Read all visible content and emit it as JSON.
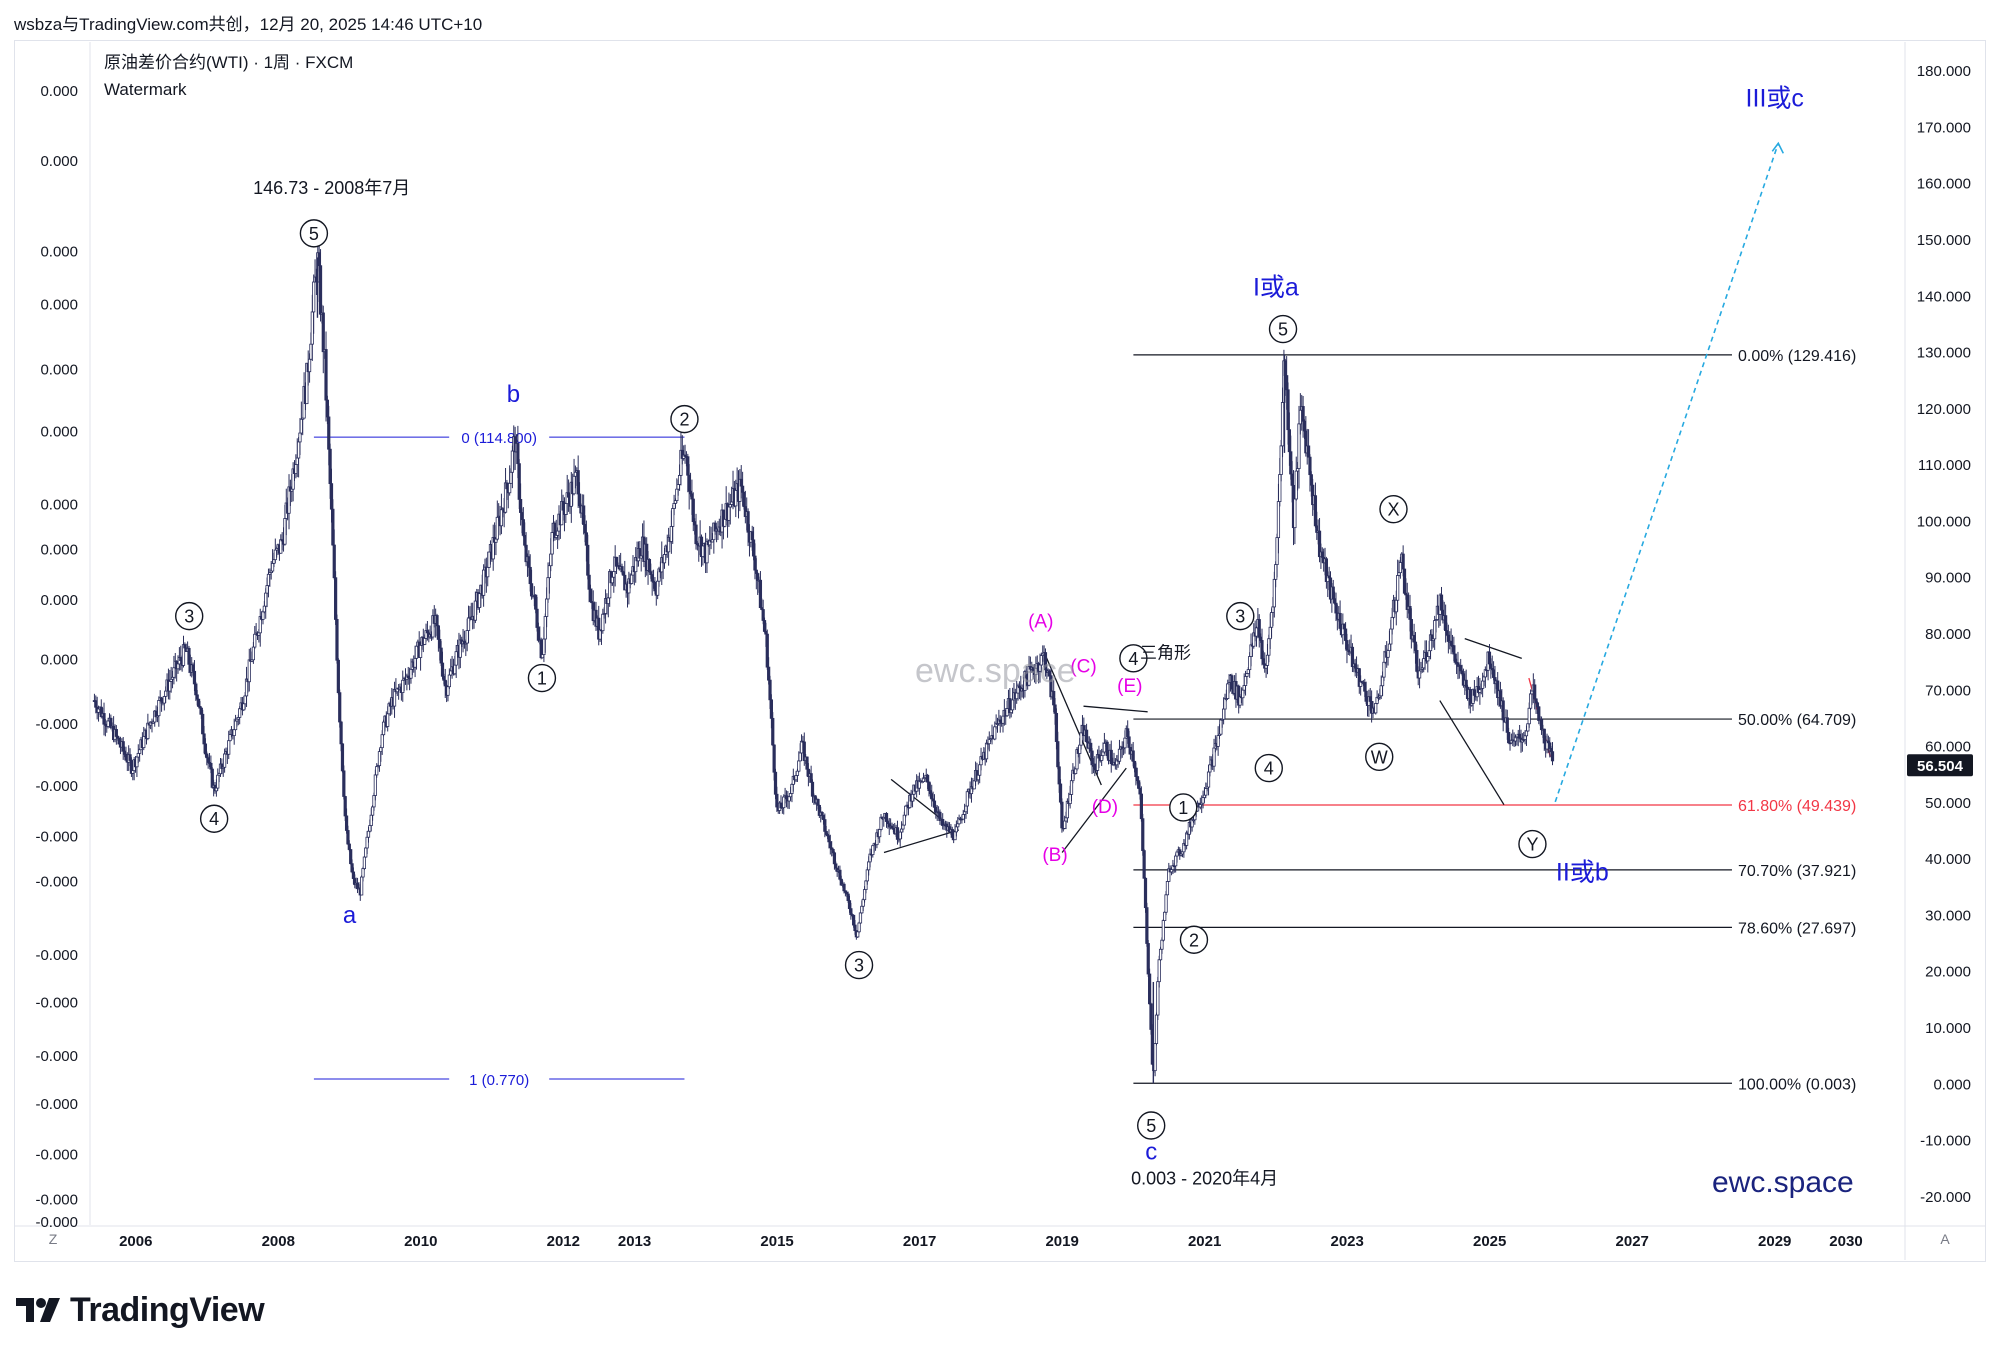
{
  "header": {
    "text": "wsbza与TradingView.com共创，12月 20, 2025 14:46 UTC+10"
  },
  "symbol": {
    "title": "原油差价合约(WTI) · 1周 · FXCM",
    "subtitle": "Watermark"
  },
  "watermark": {
    "center": "ewc.space",
    "corner": "ewc.space"
  },
  "logo": {
    "text": "TradingView"
  },
  "buttons": {
    "z": "Z",
    "a": "A"
  },
  "colors": {
    "candle": "#2a2e5c",
    "blue_label": "#1b1bd8",
    "magenta": "#e600e6",
    "red_level": "#f23645",
    "projection": "#26a9e0",
    "price_tag": "#131722"
  },
  "chart_data": {
    "type": "candlestick",
    "title": "原油差价合约(WTI) · 1周 · FXCM",
    "x_range": [
      2005.4,
      2030.8
    ],
    "y_range": [
      -25,
      185
    ],
    "x_ticks": [
      {
        "label": "2006",
        "x": 2006
      },
      {
        "label": "2008",
        "x": 2008
      },
      {
        "label": "2010",
        "x": 2010
      },
      {
        "label": "2012",
        "x": 2012
      },
      {
        "label": "2013",
        "x": 2013
      },
      {
        "label": "2015",
        "x": 2015
      },
      {
        "label": "2017",
        "x": 2017
      },
      {
        "label": "2019",
        "x": 2019
      },
      {
        "label": "2021",
        "x": 2021
      },
      {
        "label": "2023",
        "x": 2023
      },
      {
        "label": "2025",
        "x": 2025
      },
      {
        "label": "2027",
        "x": 2027
      },
      {
        "label": "2029",
        "x": 2029
      },
      {
        "label": "2030",
        "x": 2030
      }
    ],
    "right_axis_ticks": [
      {
        "label": "180.000",
        "y": 180
      },
      {
        "label": "170.000",
        "y": 170
      },
      {
        "label": "160.000",
        "y": 160
      },
      {
        "label": "150.000",
        "y": 150
      },
      {
        "label": "140.000",
        "y": 140
      },
      {
        "label": "130.000",
        "y": 130
      },
      {
        "label": "120.000",
        "y": 120
      },
      {
        "label": "110.000",
        "y": 110
      },
      {
        "label": "100.000",
        "y": 100
      },
      {
        "label": "90.000",
        "y": 90
      },
      {
        "label": "80.000",
        "y": 80
      },
      {
        "label": "70.000",
        "y": 70
      },
      {
        "label": "60.000",
        "y": 60
      },
      {
        "label": "50.000",
        "y": 50
      },
      {
        "label": "40.000",
        "y": 40
      },
      {
        "label": "30.000",
        "y": 30
      },
      {
        "label": "20.000",
        "y": 20
      },
      {
        "label": "10.000",
        "y": 10
      },
      {
        "label": "0.000",
        "y": 0
      },
      {
        "label": "-10.000",
        "y": -10
      },
      {
        "label": "-20.000",
        "y": -20
      }
    ],
    "left_axis_ticks": [
      {
        "label": "0.000",
        "y": 176.5
      },
      {
        "label": "0.000",
        "y": 164
      },
      {
        "label": "0.000",
        "y": 148
      },
      {
        "label": "0.000",
        "y": 138.5
      },
      {
        "label": "0.000",
        "y": 127
      },
      {
        "label": "0.000",
        "y": 116
      },
      {
        "label": "0.000",
        "y": 103
      },
      {
        "label": "0.000",
        "y": 95
      },
      {
        "label": "0.000",
        "y": 86
      },
      {
        "label": "0.000",
        "y": 75.5
      },
      {
        "label": "-0.000",
        "y": 64
      },
      {
        "label": "-0.000",
        "y": 53
      },
      {
        "label": "-0.000",
        "y": 44
      },
      {
        "label": "-0.000",
        "y": 36
      },
      {
        "label": "-0.000",
        "y": 23
      },
      {
        "label": "-0.000",
        "y": 14.5
      },
      {
        "label": "-0.000",
        "y": 5
      },
      {
        "label": "-0.000",
        "y": -3.5
      },
      {
        "label": "-0.000",
        "y": -12.5
      },
      {
        "label": "-0.000",
        "y": -20.5
      },
      {
        "label": "-0.000",
        "y": -24.5
      }
    ],
    "last_price": {
      "label": "56.504",
      "y": 56.504
    },
    "price_path": [
      [
        2005.42,
        68
      ],
      [
        2005.7,
        62
      ],
      [
        2005.95,
        56
      ],
      [
        2006.2,
        64
      ],
      [
        2006.5,
        72
      ],
      [
        2006.7,
        77
      ],
      [
        2006.85,
        70
      ],
      [
        2007.0,
        58
      ],
      [
        2007.1,
        52
      ],
      [
        2007.3,
        60
      ],
      [
        2007.5,
        68
      ],
      [
        2007.7,
        80
      ],
      [
        2007.9,
        92
      ],
      [
        2008.05,
        96
      ],
      [
        2008.2,
        108
      ],
      [
        2008.4,
        125
      ],
      [
        2008.5,
        140
      ],
      [
        2008.55,
        146.73
      ],
      [
        2008.65,
        128
      ],
      [
        2008.75,
        100
      ],
      [
        2008.85,
        68
      ],
      [
        2008.95,
        45
      ],
      [
        2009.05,
        36
      ],
      [
        2009.15,
        34
      ],
      [
        2009.3,
        48
      ],
      [
        2009.45,
        62
      ],
      [
        2009.6,
        68
      ],
      [
        2009.8,
        72
      ],
      [
        2010.0,
        78
      ],
      [
        2010.2,
        82
      ],
      [
        2010.35,
        70
      ],
      [
        2010.5,
        76
      ],
      [
        2010.7,
        82
      ],
      [
        2010.9,
        90
      ],
      [
        2011.1,
        100
      ],
      [
        2011.25,
        108
      ],
      [
        2011.32,
        114.8
      ],
      [
        2011.45,
        95
      ],
      [
        2011.6,
        85
      ],
      [
        2011.7,
        76
      ],
      [
        2011.85,
        98
      ],
      [
        2012.0,
        102
      ],
      [
        2012.2,
        108
      ],
      [
        2012.4,
        85
      ],
      [
        2012.5,
        80
      ],
      [
        2012.7,
        92
      ],
      [
        2012.9,
        88
      ],
      [
        2013.1,
        96
      ],
      [
        2013.3,
        88
      ],
      [
        2013.5,
        98
      ],
      [
        2013.65,
        110
      ],
      [
        2013.72,
        112
      ],
      [
        2013.85,
        98
      ],
      [
        2014.0,
        94
      ],
      [
        2014.2,
        100
      ],
      [
        2014.4,
        104
      ],
      [
        2014.5,
        106
      ],
      [
        2014.7,
        92
      ],
      [
        2014.85,
        78
      ],
      [
        2015.0,
        48
      ],
      [
        2015.2,
        52
      ],
      [
        2015.35,
        60
      ],
      [
        2015.5,
        52
      ],
      [
        2015.7,
        44
      ],
      [
        2015.9,
        36
      ],
      [
        2016.05,
        30
      ],
      [
        2016.12,
        26.1
      ],
      [
        2016.3,
        40
      ],
      [
        2016.5,
        48
      ],
      [
        2016.7,
        44
      ],
      [
        2016.9,
        52
      ],
      [
        2017.1,
        54
      ],
      [
        2017.3,
        46
      ],
      [
        2017.5,
        44
      ],
      [
        2017.7,
        52
      ],
      [
        2017.9,
        58
      ],
      [
        2018.1,
        64
      ],
      [
        2018.3,
        68
      ],
      [
        2018.5,
        72
      ],
      [
        2018.75,
        76
      ],
      [
        2018.9,
        66
      ],
      [
        2019.0,
        44
      ],
      [
        2019.15,
        55
      ],
      [
        2019.3,
        63
      ],
      [
        2019.45,
        56
      ],
      [
        2019.6,
        60
      ],
      [
        2019.75,
        56
      ],
      [
        2019.9,
        62
      ],
      [
        2020.0,
        58
      ],
      [
        2020.1,
        50
      ],
      [
        2020.18,
        28
      ],
      [
        2020.28,
        0.003
      ],
      [
        2020.35,
        20
      ],
      [
        2020.5,
        38
      ],
      [
        2020.7,
        42
      ],
      [
        2020.85,
        48
      ],
      [
        2021.0,
        52
      ],
      [
        2021.2,
        62
      ],
      [
        2021.35,
        72
      ],
      [
        2021.5,
        68
      ],
      [
        2021.6,
        74
      ],
      [
        2021.75,
        82
      ],
      [
        2021.85,
        72
      ],
      [
        2022.0,
        92
      ],
      [
        2022.12,
        129.416
      ],
      [
        2022.25,
        100
      ],
      [
        2022.35,
        120
      ],
      [
        2022.45,
        112
      ],
      [
        2022.6,
        96
      ],
      [
        2022.75,
        88
      ],
      [
        2022.9,
        82
      ],
      [
        2023.1,
        74
      ],
      [
        2023.3,
        68
      ],
      [
        2023.4,
        66
      ],
      [
        2023.55,
        76
      ],
      [
        2023.7,
        88
      ],
      [
        2023.75,
        94
      ],
      [
        2023.9,
        80
      ],
      [
        2024.0,
        72
      ],
      [
        2024.2,
        80
      ],
      [
        2024.3,
        86
      ],
      [
        2024.45,
        78
      ],
      [
        2024.6,
        72
      ],
      [
        2024.75,
        68
      ],
      [
        2024.9,
        72
      ],
      [
        2025.0,
        76
      ],
      [
        2025.15,
        68
      ],
      [
        2025.3,
        60
      ],
      [
        2025.5,
        62
      ],
      [
        2025.6,
        70
      ],
      [
        2025.7,
        64
      ],
      [
        2025.8,
        60
      ],
      [
        2025.9,
        56.504
      ]
    ],
    "fib_levels": [
      {
        "label": "0.00% (129.416)",
        "y": 129.416,
        "color": "#131722"
      },
      {
        "label": "50.00% (64.709)",
        "y": 64.709,
        "color": "#131722"
      },
      {
        "label": "61.80% (49.439)",
        "y": 49.439,
        "color": "#f23645"
      },
      {
        "label": "70.70% (37.921)",
        "y": 37.921,
        "color": "#131722"
      },
      {
        "label": "78.60% (27.697)",
        "y": 27.697,
        "color": "#131722"
      },
      {
        "label": "100.00% (0.003)",
        "y": 0.003,
        "color": "#131722"
      }
    ],
    "blue_levels": [
      {
        "label": "0 (114.800)",
        "y": 114.8
      },
      {
        "label": "1 (0.770)",
        "y": 0.77
      }
    ],
    "wave_labels": [
      {
        "text": "3",
        "x": 2006.75,
        "y": 83
      },
      {
        "text": "4",
        "x": 2007.1,
        "y": 47
      },
      {
        "text": "5",
        "x": 2008.5,
        "y": 151
      },
      {
        "text": "1",
        "x": 2011.7,
        "y": 72
      },
      {
        "text": "2",
        "x": 2013.7,
        "y": 118
      },
      {
        "text": "3",
        "x": 2016.15,
        "y": 21
      },
      {
        "text": "4",
        "x": 2020.0,
        "y": 75.5
      },
      {
        "text": "1",
        "x": 2020.7,
        "y": 49
      },
      {
        "text": "2",
        "x": 2020.85,
        "y": 25.5
      },
      {
        "text": "3",
        "x": 2021.5,
        "y": 83
      },
      {
        "text": "4",
        "x": 2021.9,
        "y": 56
      },
      {
        "text": "5",
        "x": 2022.1,
        "y": 134
      },
      {
        "text": "5",
        "x": 2020.25,
        "y": -7.5
      },
      {
        "text": "X",
        "x": 2023.65,
        "y": 102
      },
      {
        "text": "W",
        "x": 2023.45,
        "y": 58
      },
      {
        "text": "Y",
        "x": 2025.6,
        "y": 42.5
      }
    ],
    "text_annotations": [
      {
        "text": "146.73 - 2008年7月",
        "x": 2008.75,
        "y": 158,
        "color": "#131722",
        "size": 18
      },
      {
        "text": "0.003 - 2020年4月",
        "x": 2021.0,
        "y": -18,
        "color": "#131722",
        "size": 18
      },
      {
        "text": "三角形",
        "x": 2020.45,
        "y": 75.5,
        "color": "#131722",
        "size": 17
      },
      {
        "text": "a",
        "x": 2009.0,
        "y": 28.5,
        "color": "#1b1bd8",
        "size": 24
      },
      {
        "text": "b",
        "x": 2011.3,
        "y": 121,
        "color": "#1b1bd8",
        "size": 24
      },
      {
        "text": "c",
        "x": 2020.25,
        "y": -13.5,
        "color": "#1b1bd8",
        "size": 24
      },
      {
        "text": "I或a",
        "x": 2022.0,
        "y": 140,
        "color": "#1b1bd8",
        "size": 25
      },
      {
        "text": "II或b",
        "x": 2026.3,
        "y": 36,
        "color": "#1b1bd8",
        "size": 25
      },
      {
        "text": "III或c",
        "x": 2029.0,
        "y": 173.5,
        "color": "#1b1bd8",
        "size": 25
      },
      {
        "text": "(A)",
        "x": 2018.7,
        "y": 81,
        "color": "#e600e6",
        "size": 19
      },
      {
        "text": "(B)",
        "x": 2018.9,
        "y": 39.5,
        "color": "#e600e6",
        "size": 19
      },
      {
        "text": "(C)",
        "x": 2019.3,
        "y": 73,
        "color": "#e600e6",
        "size": 19
      },
      {
        "text": "(D)",
        "x": 2019.6,
        "y": 48,
        "color": "#e600e6",
        "size": 19
      },
      {
        "text": "(E)",
        "x": 2019.95,
        "y": 69.5,
        "color": "#e600e6",
        "size": 19
      }
    ],
    "trendlines": [
      {
        "from": [
          2016.6,
          54
        ],
        "to": [
          2017.3,
          47
        ],
        "color": "#131722"
      },
      {
        "from": [
          2016.5,
          41
        ],
        "to": [
          2017.55,
          45
        ],
        "color": "#131722"
      },
      {
        "from": [
          2018.75,
          76.5
        ],
        "to": [
          2019.55,
          53
        ],
        "color": "#131722"
      },
      {
        "from": [
          2019.0,
          41
        ],
        "to": [
          2019.9,
          56
        ],
        "color": "#131722"
      },
      {
        "from": [
          2019.3,
          67
        ],
        "to": [
          2020.2,
          66
        ],
        "color": "#131722"
      },
      {
        "from": [
          2024.65,
          79
        ],
        "to": [
          2025.45,
          75.5
        ],
        "color": "#131722"
      },
      {
        "from": [
          2024.3,
          68
        ],
        "to": [
          2025.2,
          49.5
        ],
        "color": "#131722"
      }
    ],
    "projection_line": {
      "from": [
        2025.92,
        50
      ],
      "to": [
        2029.05,
        167
      ],
      "color": "#26a9e0"
    }
  }
}
